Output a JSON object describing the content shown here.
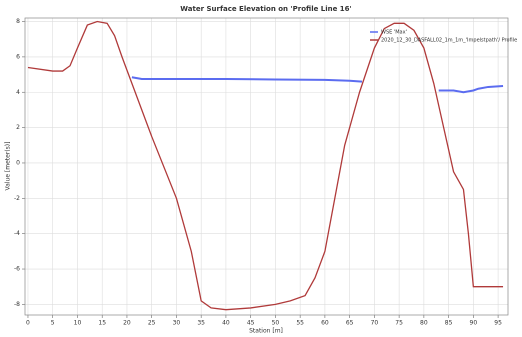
{
  "chart_data": {
    "type": "line",
    "title": "Water Surface Elevation on 'Profile Line 16'",
    "xlabel": "Station [m]",
    "ylabel": "Value [meter(s)]",
    "xlim": [
      -0.6,
      97
    ],
    "ylim": [
      -8.6,
      8.2
    ],
    "xticks": [
      0,
      5,
      10,
      15,
      20,
      25,
      30,
      35,
      40,
      45,
      50,
      55,
      60,
      65,
      70,
      75,
      80,
      85,
      90,
      95
    ],
    "yticks": [
      -8,
      -6,
      -4,
      -2,
      0,
      2,
      4,
      6,
      8
    ],
    "grid": true,
    "series": [
      {
        "name": "WSE 'Max'",
        "color": "#5b6cf0",
        "x": [
          21,
          23,
          30,
          40,
          50,
          60,
          65,
          67.5,
          75,
          83,
          86,
          88,
          90,
          91,
          93,
          96
        ],
        "values": [
          4.85,
          4.75,
          4.75,
          4.75,
          4.72,
          4.7,
          4.65,
          4.6,
          null,
          4.1,
          4.1,
          4.0,
          4.1,
          4.2,
          4.3,
          4.35
        ]
      },
      {
        "name": "2020_12_30_DASFALL02_1m_1m_'Impelstpath'/ Profile",
        "color": "#b03a3a",
        "x": [
          0,
          5,
          7,
          8.5,
          10,
          12,
          14,
          16,
          17.5,
          19,
          21,
          25,
          30,
          33,
          35,
          37,
          40,
          45,
          50,
          53,
          56,
          58,
          60,
          62,
          64,
          67,
          70,
          72,
          74,
          76,
          78,
          80,
          82,
          84,
          86,
          88,
          89,
          90,
          91,
          93,
          96
        ],
        "values": [
          5.4,
          5.2,
          5.2,
          5.5,
          6.5,
          7.8,
          8,
          7.9,
          7.2,
          6,
          4.5,
          1.5,
          -2,
          -5,
          -7.8,
          -8.2,
          -8.3,
          -8.2,
          -8,
          -7.8,
          -7.5,
          -6.5,
          -5,
          -2,
          1,
          4,
          6.5,
          7.6,
          7.9,
          7.9,
          7.5,
          6.5,
          4.5,
          2,
          -0.5,
          -1.5,
          -4,
          -7,
          -7,
          -7,
          -7
        ]
      }
    ]
  }
}
